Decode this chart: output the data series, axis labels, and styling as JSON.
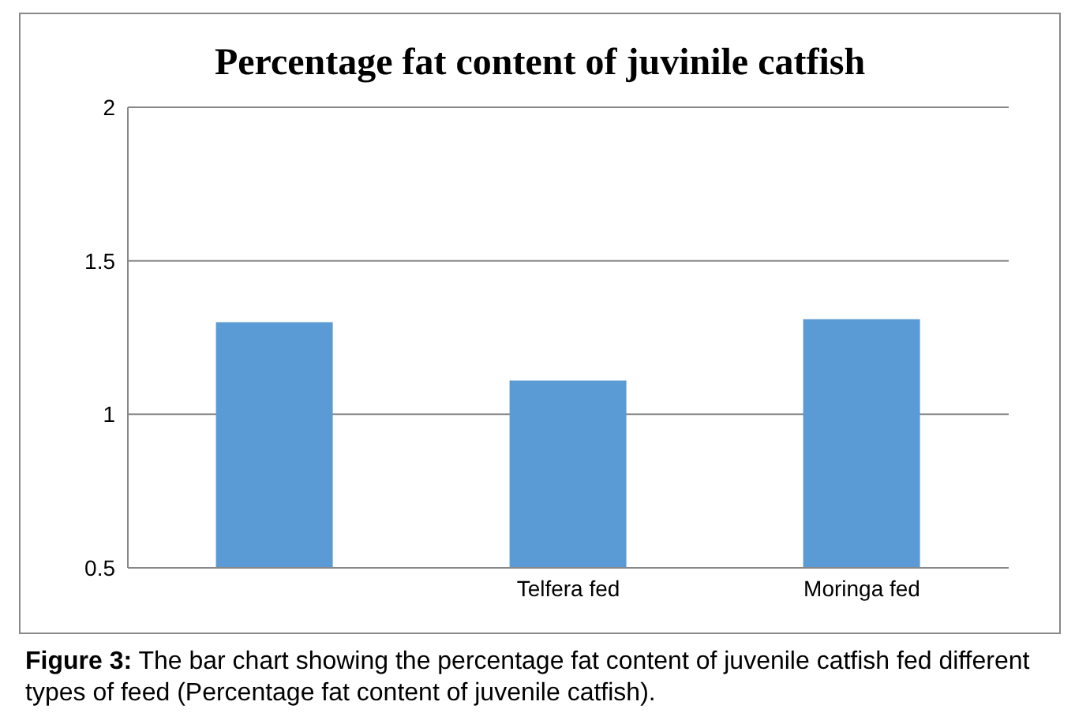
{
  "chart_data": {
    "type": "bar",
    "title": "Percentage fat content of juvinile catfish",
    "categories": [
      null,
      "Telfera fed",
      "Moringa fed"
    ],
    "values": [
      1.3,
      1.11,
      1.31
    ],
    "color": "#5b9bd5",
    "ylim": [
      0.5,
      2
    ],
    "yticks": [
      0.5,
      1,
      1.5,
      2
    ],
    "grid": "y",
    "annotations": [
      "Figure 3: The bar chart showing the percentage fat content of  juvenile catfish fed different types of feed (Percentage fat content of juvenile catfish)."
    ]
  }
}
